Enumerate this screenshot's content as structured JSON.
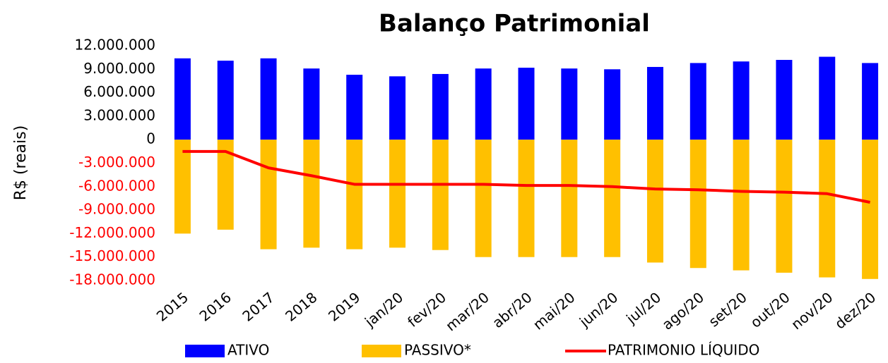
{
  "chart_data": {
    "type": "bar",
    "title": "Balanço Patrimonial",
    "y_label": "R$ (reais)",
    "categories": [
      "2015",
      "2016",
      "2017",
      "2018",
      "2019",
      "jan/20",
      "fev/20",
      "mar/20",
      "abr/20",
      "mai/20",
      "jun/20",
      "jul/20",
      "ago/20",
      "set/20",
      "out/20",
      "nov/20",
      "dez/20"
    ],
    "series": [
      {
        "name": "ATIVO",
        "type": "bar",
        "color": "#0000ff",
        "values": [
          10400000,
          10100000,
          10400000,
          9100000,
          8300000,
          8100000,
          8400000,
          9100000,
          9200000,
          9100000,
          9000000,
          9300000,
          9800000,
          10000000,
          10200000,
          10600000,
          9800000
        ]
      },
      {
        "name": "PASSIVO*",
        "type": "bar",
        "color": "#ffc000",
        "values": [
          -12000000,
          -11500000,
          -14000000,
          -13800000,
          -14000000,
          -13800000,
          -14100000,
          -15000000,
          -15000000,
          -15000000,
          -15000000,
          -15700000,
          -16400000,
          -16700000,
          -17000000,
          -17600000,
          -17800000
        ]
      },
      {
        "name": "PATRIMONIO LÍQUIDO",
        "type": "line",
        "color": "#ff0000",
        "values": [
          -1500000,
          -1500000,
          -3600000,
          -4600000,
          -5700000,
          -5700000,
          -5700000,
          -5700000,
          -5850000,
          -5850000,
          -6000000,
          -6300000,
          -6400000,
          -6600000,
          -6700000,
          -6900000,
          -8000000
        ]
      }
    ],
    "ylim": [
      -18000000,
      12000000
    ],
    "yticks": [
      {
        "value": 12000000,
        "label": "12.000.000"
      },
      {
        "value": 9000000,
        "label": "9.000.000"
      },
      {
        "value": 6000000,
        "label": "6.000.000"
      },
      {
        "value": 3000000,
        "label": "3.000.000"
      },
      0,
      {
        "value": -3000000,
        "label": "-3.000.000"
      },
      {
        "value": -6000000,
        "label": "-6.000.000"
      },
      {
        "value": -9000000,
        "label": "-9.000.000"
      },
      {
        "value": -12000000,
        "label": "-12.000.000"
      },
      {
        "value": -15000000,
        "label": "-15.000.000"
      },
      {
        "value": -18000000,
        "label": "-18.000.000"
      }
    ],
    "negative_tick_color": "#ff0000",
    "grid": false,
    "legend": "bottom"
  }
}
